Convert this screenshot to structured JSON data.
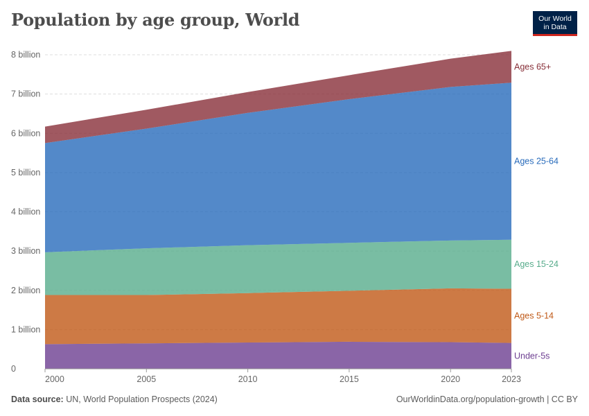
{
  "header": {
    "title": "Population by age group, World",
    "logo_line1": "Our World",
    "logo_line2": "in Data"
  },
  "footer": {
    "source_label": "Data source:",
    "source_text": "UN, World Population Prospects (2024)",
    "url": "OurWorldinData.org/population-growth | CC BY"
  },
  "chart_data": {
    "type": "area",
    "stacked": true,
    "title": "Population by age group, World",
    "x": [
      2000,
      2005,
      2010,
      2015,
      2020,
      2023
    ],
    "xticks": [
      "2000",
      "2005",
      "2010",
      "2015",
      "2020",
      "2023"
    ],
    "ylim": [
      0,
      8000000000
    ],
    "yticks": [
      0,
      1000000000,
      2000000000,
      3000000000,
      4000000000,
      5000000000,
      6000000000,
      7000000000,
      8000000000
    ],
    "yticklabels": [
      "0",
      "1 billion",
      "2 billion",
      "3 billion",
      "4 billion",
      "5 billion",
      "6 billion",
      "7 billion",
      "8 billion"
    ],
    "grid": true,
    "legend": "inline-right",
    "series": [
      {
        "name": "Under-5s",
        "color": "#6d3e91",
        "values": [
          630000000,
          650000000,
          670000000,
          690000000,
          680000000,
          660000000
        ]
      },
      {
        "name": "Ages 5-14",
        "color": "#c05917",
        "values": [
          1250000000,
          1230000000,
          1260000000,
          1300000000,
          1370000000,
          1380000000
        ]
      },
      {
        "name": "Ages 15-24",
        "color": "#58ac8c",
        "values": [
          1090000000,
          1190000000,
          1220000000,
          1220000000,
          1220000000,
          1250000000
        ]
      },
      {
        "name": "Ages 25-64",
        "color": "#286bbb",
        "values": [
          2780000000,
          3050000000,
          3370000000,
          3660000000,
          3910000000,
          4000000000
        ]
      },
      {
        "name": "Ages 65+",
        "color": "#883039",
        "values": [
          420000000,
          480000000,
          530000000,
          610000000,
          720000000,
          810000000
        ]
      }
    ]
  }
}
